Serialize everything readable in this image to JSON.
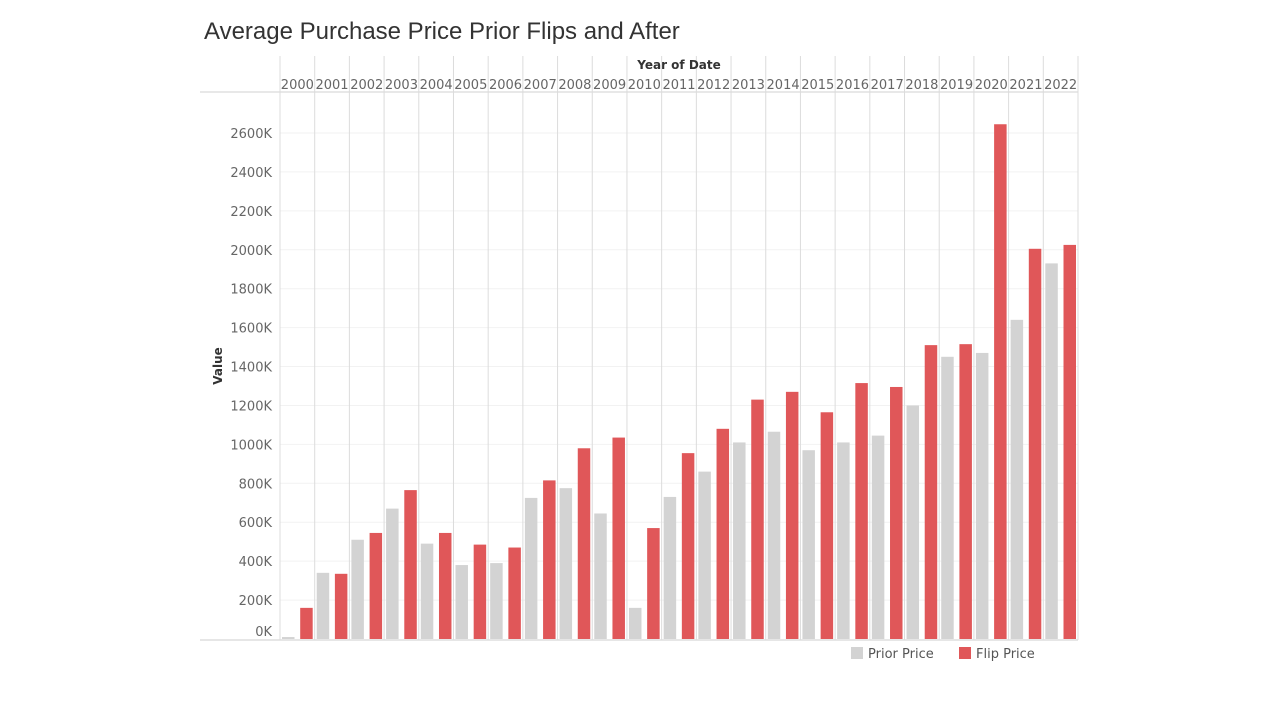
{
  "chart_data": {
    "type": "bar",
    "title": "Average Purchase Price Prior Flips and After",
    "xlabel": "Year of Date",
    "ylabel": "Value",
    "categories": [
      "2000",
      "2001",
      "2002",
      "2003",
      "2004",
      "2005",
      "2006",
      "2007",
      "2008",
      "2009",
      "2010",
      "2011",
      "2012",
      "2013",
      "2014",
      "2015",
      "2016",
      "2017",
      "2018",
      "2019",
      "2020",
      "2021",
      "2022"
    ],
    "series": [
      {
        "name": "Prior Price",
        "color": "#d3d3d3",
        "values": [
          10,
          340,
          510,
          670,
          490,
          380,
          390,
          725,
          775,
          645,
          160,
          730,
          860,
          1010,
          1065,
          970,
          1010,
          1045,
          1200,
          1450,
          1470,
          1640,
          1930
        ]
      },
      {
        "name": "Flip Price",
        "color": "#e05759",
        "values": [
          160,
          335,
          545,
          765,
          545,
          485,
          470,
          815,
          980,
          1035,
          570,
          955,
          1080,
          1230,
          1270,
          1165,
          1315,
          1295,
          1510,
          1515,
          2645,
          2005,
          2025
        ]
      }
    ],
    "unit": "K",
    "ylim": [
      0,
      2760
    ],
    "yticks": [
      "0K",
      "200K",
      "400K",
      "600K",
      "800K",
      "1000K",
      "1200K",
      "1400K",
      "1600K",
      "1800K",
      "2000K",
      "2200K",
      "2400K",
      "2600K"
    ],
    "ytick_values": [
      0,
      200,
      400,
      600,
      800,
      1000,
      1200,
      1400,
      1600,
      1800,
      2000,
      2200,
      2400,
      2600
    ],
    "grid": true,
    "legend": "bottom-right"
  }
}
